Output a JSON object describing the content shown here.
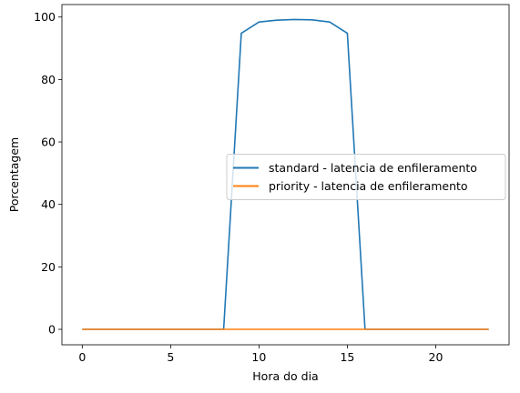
{
  "chart_data": {
    "type": "line",
    "title": "",
    "xlabel": "Hora do dia",
    "ylabel": "Porcentagem",
    "xlim": [
      -1.15,
      24.15
    ],
    "ylim": [
      -4.95,
      104.0
    ],
    "xticks": [
      0,
      5,
      10,
      15,
      20
    ],
    "yticks": [
      0,
      20,
      40,
      60,
      80,
      100
    ],
    "grid": false,
    "legend_position": "center-right",
    "x": [
      0,
      1,
      2,
      3,
      4,
      5,
      6,
      7,
      8,
      9,
      10,
      11,
      12,
      13,
      14,
      15,
      16,
      17,
      18,
      19,
      20,
      21,
      22,
      23
    ],
    "series": [
      {
        "name": "standard - latencia de enfileramento",
        "color": "#1f77b4",
        "values": [
          0,
          0,
          0,
          0,
          0,
          0,
          0,
          0,
          0,
          94.8,
          98.4,
          99.0,
          99.2,
          99.1,
          98.4,
          94.8,
          0,
          0,
          0,
          0,
          0,
          0,
          0,
          0
        ]
      },
      {
        "name": "priority - latencia de enfileramento",
        "color": "#ff7f0e",
        "values": [
          0,
          0,
          0,
          0,
          0,
          0,
          0,
          0,
          0,
          0,
          0,
          0,
          0,
          0,
          0,
          0,
          0,
          0,
          0,
          0,
          0,
          0,
          0,
          0
        ]
      }
    ]
  }
}
